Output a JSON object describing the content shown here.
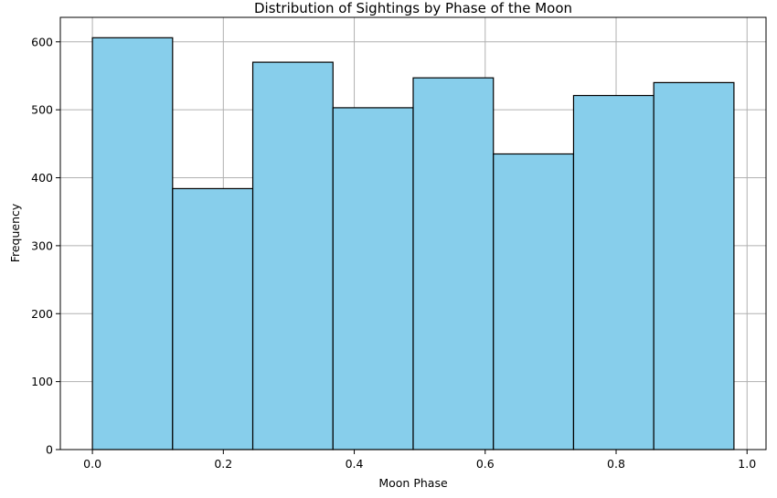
{
  "chart_data": {
    "type": "bar",
    "title": "Distribution of Sightings by Phase of the Moon",
    "xlabel": "Moon Phase",
    "ylabel": "Frequency",
    "bin_edges": [
      0.0,
      0.1225,
      0.245,
      0.3675,
      0.49,
      0.6125,
      0.735,
      0.8575,
      0.98
    ],
    "values": [
      606,
      384,
      570,
      503,
      547,
      435,
      521,
      540
    ],
    "xlim": [
      -0.049,
      1.029
    ],
    "ylim": [
      0,
      636
    ],
    "xticks": [
      0.0,
      0.2,
      0.4,
      0.6,
      0.8,
      1.0
    ],
    "xtick_labels": [
      "0.0",
      "0.2",
      "0.4",
      "0.6",
      "0.8",
      "1.0"
    ],
    "yticks": [
      0,
      100,
      200,
      300,
      400,
      500,
      600
    ],
    "ytick_labels": [
      "0",
      "100",
      "200",
      "300",
      "400",
      "500",
      "600"
    ],
    "grid": true,
    "bar_color": "#87ceeb",
    "edge_color": "#000000",
    "grid_color": "#b0b0b0"
  }
}
